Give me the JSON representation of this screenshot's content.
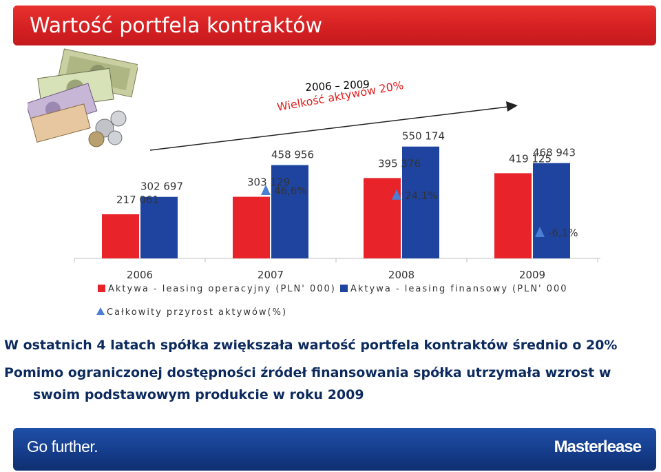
{
  "header": {
    "title": "Wartość portfela kontraktów"
  },
  "annotation": {
    "period": "2006 – 2009",
    "growth": "Wielkość aktywów 20%"
  },
  "chart_data": {
    "type": "bar",
    "categories": [
      "2006",
      "2007",
      "2008",
      "2009"
    ],
    "series": [
      {
        "name": "Aktywa - leasing operacyjny (PLN' 000)",
        "color": "#e8232a",
        "values": [
          217061,
          303129,
          395376,
          419125
        ],
        "labels": [
          "217 061",
          "303 129",
          "395 376",
          "419 125"
        ]
      },
      {
        "name": "Aktywa - leasing finansowy (PLN' 000",
        "color": "#1e44a0",
        "values": [
          302697,
          458956,
          550174,
          468943
        ],
        "labels": [
          "302 697",
          "458 956",
          "550 174",
          "468 943"
        ]
      },
      {
        "name": "Całkowity przyrost aktywów(%)",
        "type": "marker",
        "color": "#4a7fd4",
        "values": [
          null,
          46.6,
          24.1,
          -6.1
        ],
        "labels": [
          "",
          "46,6%",
          "24,1%",
          "-6,1%"
        ]
      }
    ],
    "legend_position": "bottom",
    "grid": false
  },
  "legend": {
    "operating": "Aktywa - leasing operacyjny (PLN' 000)",
    "financial": "Aktywa - leasing finansowy (PLN' 000",
    "growth": "Całkowity przyrost aktywów(%)"
  },
  "bullets": [
    "W ostatnich 4 latach spółka zwiększała wartość portfela kontraktów średnio o 20%",
    "Pomimo ograniczonej dostępności źródeł finansowania spółka utrzymała wzrost w",
    "swoim podstawowym produkcie w roku 2009"
  ],
  "footer": {
    "tagline": "Go further.",
    "brand": "Masterlease"
  },
  "colors": {
    "brand_red": "#e8232a",
    "brand_blue": "#1e44a0",
    "marker_blue": "#4a7fd4",
    "text_dark": "#0c2a5e"
  }
}
